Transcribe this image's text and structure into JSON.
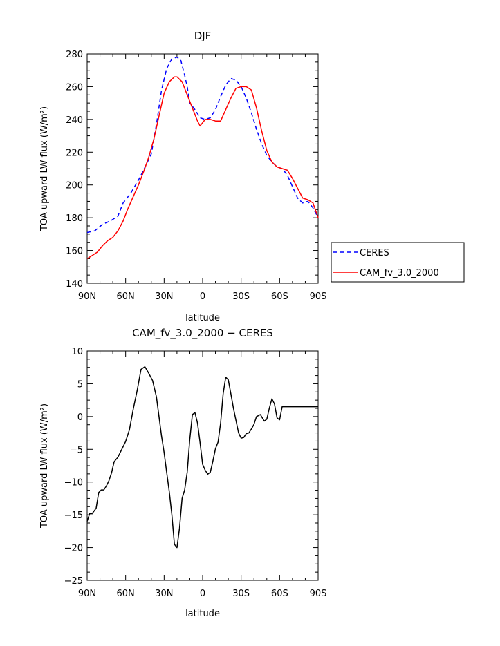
{
  "chart_data": [
    {
      "type": "line",
      "title": "DJF",
      "xlabel": "latitude",
      "ylabel": "TOA upward LW flux (W/m²)",
      "xlim": [
        -90,
        90
      ],
      "ylim": [
        140,
        280
      ],
      "x_ticks": [
        -90,
        -60,
        -30,
        0,
        30,
        60,
        90
      ],
      "x_tick_labels": [
        "90N",
        "60N",
        "30N",
        "0",
        "30S",
        "60S",
        "90S"
      ],
      "y_ticks": [
        140,
        160,
        180,
        200,
        220,
        240,
        260,
        280
      ],
      "y_tick_labels": [
        "140",
        "160",
        "180",
        "200",
        "220",
        "240",
        "260",
        "280"
      ],
      "legend_position": "right",
      "series": [
        {
          "name": "CERES",
          "color": "#0000ff",
          "dash": "dashed",
          "x": [
            -90,
            -84,
            -78,
            -72,
            -66,
            -62,
            -56,
            -50,
            -46,
            -40,
            -36,
            -32,
            -28,
            -24,
            -20,
            -17,
            -14,
            -12,
            -10,
            -6,
            -2,
            2,
            6,
            10,
            14,
            18,
            22,
            26,
            30,
            34,
            38,
            42,
            46,
            50,
            54,
            58,
            62,
            66,
            70,
            74,
            78,
            82,
            86,
            90
          ],
          "y": [
            171,
            172,
            176,
            178,
            181,
            189,
            195,
            203,
            209,
            219,
            237,
            258,
            271,
            277,
            278,
            276,
            267,
            260,
            250,
            246,
            241,
            240,
            241,
            246,
            254,
            261,
            265,
            264,
            260,
            253,
            244,
            234,
            225,
            218,
            214,
            211,
            210,
            206,
            199,
            192,
            189,
            190,
            186,
            180
          ]
        },
        {
          "name": "CAM_fv_3.0_2000",
          "color": "#ff0000",
          "dash": "solid",
          "x": [
            -90,
            -86,
            -82,
            -78,
            -74,
            -70,
            -66,
            -62,
            -58,
            -54,
            -50,
            -46,
            -42,
            -38,
            -34,
            -30,
            -26,
            -22,
            -20,
            -16,
            -12,
            -8,
            -4,
            -2,
            2,
            6,
            10,
            14,
            18,
            22,
            26,
            30,
            34,
            38,
            42,
            46,
            50,
            54,
            58,
            62,
            66,
            70,
            74,
            78,
            82,
            86,
            90
          ],
          "y": [
            155,
            157,
            159,
            163,
            166,
            168,
            172,
            178,
            186,
            193,
            200,
            208,
            217,
            228,
            242,
            256,
            263,
            266,
            266,
            263,
            255,
            247,
            239,
            236,
            240,
            240,
            239,
            239,
            246,
            253,
            259,
            260,
            260,
            258,
            247,
            233,
            221,
            214,
            211,
            210,
            209,
            204,
            198,
            192,
            191,
            189,
            180
          ]
        }
      ]
    },
    {
      "type": "line",
      "title": "CAM_fv_3.0_2000 − CERES",
      "xlabel": "latitude",
      "ylabel": "TOA upward LW flux (W/m²)",
      "xlim": [
        -90,
        90
      ],
      "ylim": [
        -25,
        10
      ],
      "x_ticks": [
        -90,
        -60,
        -30,
        0,
        30,
        60,
        90
      ],
      "x_tick_labels": [
        "90N",
        "60N",
        "30N",
        "0",
        "30S",
        "60S",
        "90S"
      ],
      "y_ticks": [
        -25,
        -20,
        -15,
        -10,
        -5,
        0,
        5,
        10
      ],
      "y_tick_labels": [
        "−25",
        "−20",
        "−15",
        "−10",
        "−5",
        "0",
        "5",
        "10"
      ],
      "series": [
        {
          "color": "#000000",
          "x": [
            -90,
            -88,
            -86,
            -83,
            -81,
            -79,
            -77,
            -75,
            -73,
            -71,
            -69,
            -66,
            -63,
            -60,
            -57,
            -54,
            -51,
            -48,
            -45,
            -42,
            -39,
            -36,
            -34,
            -32,
            -30,
            -28,
            -26,
            -24,
            -22,
            -20,
            -18,
            -16,
            -14,
            -12,
            -10,
            -8,
            -6,
            -4,
            -2,
            0,
            2,
            4,
            6,
            8,
            10,
            12,
            14,
            16,
            18,
            20,
            22,
            24,
            26,
            28,
            30,
            32,
            34,
            36,
            38,
            40,
            42,
            45,
            48,
            50,
            52,
            54,
            56,
            58,
            60,
            62,
            64,
            66,
            68,
            70,
            72,
            74,
            76,
            78,
            80,
            82,
            84,
            86,
            88,
            90
          ],
          "y": [
            -16,
            -14.8,
            -14.8,
            -14,
            -11.6,
            -11.2,
            -11.2,
            -10.6,
            -9.8,
            -8.6,
            -6.9,
            -6.2,
            -5,
            -3.8,
            -2,
            1.2,
            4,
            7.2,
            7.6,
            6.6,
            5.5,
            3,
            0,
            -3,
            -5.5,
            -8.5,
            -11.5,
            -15,
            -19.5,
            -20,
            -17,
            -12.5,
            -11.2,
            -8.5,
            -3.5,
            0.3,
            0.6,
            -1,
            -4,
            -7.3,
            -8.2,
            -8.8,
            -8.5,
            -6.8,
            -4.9,
            -3.9,
            -1,
            3.5,
            6,
            5.6,
            3.5,
            1.3,
            -0.6,
            -2.5,
            -3.3,
            -3.2,
            -2.6,
            -2.5,
            -1.9,
            -1.2,
            0,
            0.3,
            -0.7,
            -0.4,
            1.3,
            2.7,
            1.9,
            -0.2,
            -0.5,
            1.5,
            1.5,
            1.5,
            1.5,
            1.5,
            1.5,
            1.5,
            1.5,
            1.5,
            1.5,
            1.5,
            1.5,
            1.5,
            1.5,
            1.5
          ]
        }
      ]
    }
  ]
}
